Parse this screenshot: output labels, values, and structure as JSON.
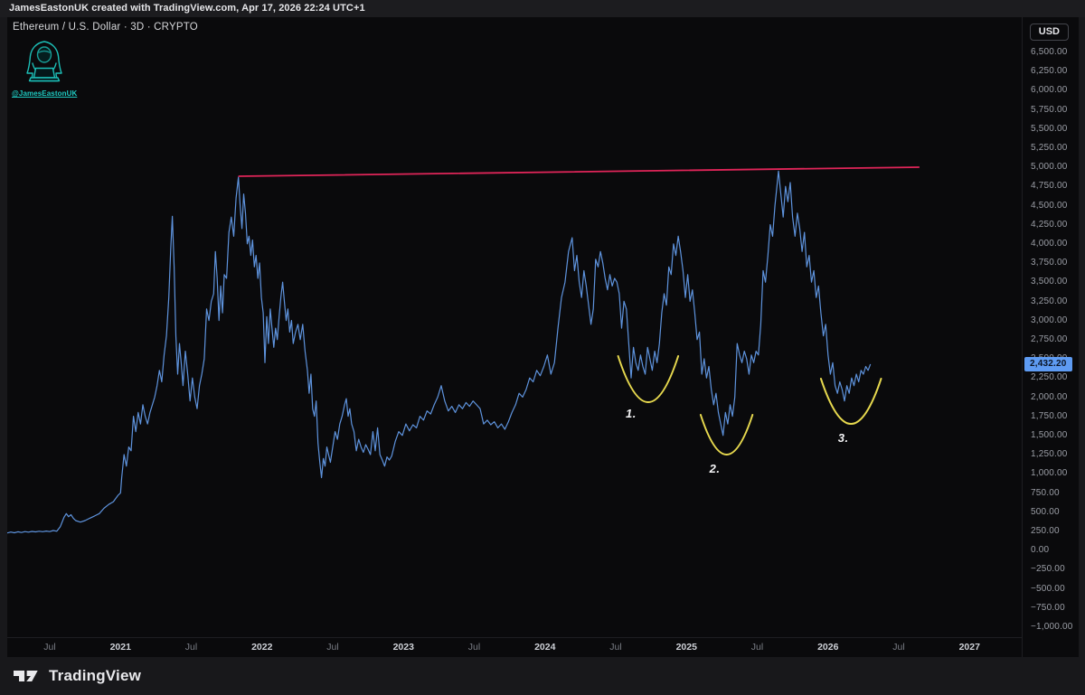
{
  "attribution": {
    "text": "JamesEastonUK created with TradingView.com, Apr 17, 2026 22:24 UTC+1"
  },
  "creator": {
    "handle": "@JamesEastonUK",
    "accent_color": "#1ec9c1"
  },
  "header": {
    "symbol_title": "Ethereum / U.S. Dollar · 3D · CRYPTO",
    "currency_button": "USD"
  },
  "footer": {
    "brand": "TradingView"
  },
  "colors": {
    "price_line": "#5e93dd",
    "trendline_pink": "#e02559",
    "arc_yellow": "#e6d84e",
    "badge_bg": "#5e9bf2",
    "badge_text": "#0a1526",
    "plot_background": "#0a0a0c",
    "frame_background": "#18181b",
    "teal_accent": "#1ec9c1"
  },
  "chart_data": {
    "type": "line",
    "title": "Ethereum / U.S. Dollar",
    "interval": "3D",
    "exchange": "CRYPTO",
    "last_price": 2432.2,
    "last_price_label": "2,432.20",
    "grid": false,
    "legend_position": "none",
    "y_axis": {
      "tick_step": 250,
      "visible_price_range": [
        -1142,
        6960
      ],
      "tick_labels": [
        "6,500.00",
        "6,250.00",
        "6,000.00",
        "5,750.00",
        "5,500.00",
        "5,250.00",
        "5,000.00",
        "4,750.00",
        "4,500.00",
        "4,250.00",
        "4,000.00",
        "3,750.00",
        "3,500.00",
        "3,250.00",
        "3,000.00",
        "2,750.00",
        "2,500.00",
        "2,250.00",
        "2,000.00",
        "1,750.00",
        "1,500.00",
        "1,250.00",
        "1,000.00",
        "750.00",
        "500.00",
        "250.00",
        "0.00",
        "−250.00",
        "−500.00",
        "−750.00",
        "−1,000.00"
      ]
    },
    "x_axis": {
      "note": "month index 0 = Jul 2020",
      "ticks": [
        {
          "label": "Jul",
          "month": 0,
          "major": false
        },
        {
          "label": "2021",
          "month": 6,
          "major": true
        },
        {
          "label": "Jul",
          "month": 12,
          "major": false
        },
        {
          "label": "2022",
          "month": 18,
          "major": true
        },
        {
          "label": "Jul",
          "month": 24,
          "major": false
        },
        {
          "label": "2023",
          "month": 30,
          "major": true
        },
        {
          "label": "Jul",
          "month": 36,
          "major": false
        },
        {
          "label": "2024",
          "month": 42,
          "major": true
        },
        {
          "label": "Jul",
          "month": 48,
          "major": false
        },
        {
          "label": "2025",
          "month": 54,
          "major": true
        },
        {
          "label": "Jul",
          "month": 60,
          "major": false
        },
        {
          "label": "2026",
          "month": 66,
          "major": true
        },
        {
          "label": "Jul",
          "month": 72,
          "major": false
        },
        {
          "label": "2027",
          "month": 78,
          "major": true
        }
      ]
    },
    "series": [
      [
        -3.6,
        230
      ],
      [
        -3.3,
        242
      ],
      [
        -3.0,
        232
      ],
      [
        -2.7,
        245
      ],
      [
        -2.4,
        236
      ],
      [
        -2.1,
        248
      ],
      [
        -1.8,
        240
      ],
      [
        -1.5,
        250
      ],
      [
        -1.2,
        244
      ],
      [
        -0.9,
        252
      ],
      [
        -0.6,
        246
      ],
      [
        -0.3,
        255
      ],
      [
        0,
        248
      ],
      [
        0.3,
        262
      ],
      [
        0.6,
        252
      ],
      [
        0.9,
        312
      ],
      [
        1.2,
        432
      ],
      [
        1.4,
        482
      ],
      [
        1.6,
        442
      ],
      [
        1.8,
        468
      ],
      [
        2.0,
        422
      ],
      [
        2.2,
        392
      ],
      [
        2.6,
        372
      ],
      [
        3.0,
        392
      ],
      [
        3.4,
        422
      ],
      [
        3.8,
        452
      ],
      [
        4.2,
        482
      ],
      [
        4.6,
        552
      ],
      [
        5.0,
        602
      ],
      [
        5.4,
        638
      ],
      [
        5.8,
        722
      ],
      [
        6.0,
        752
      ],
      [
        6.1,
        952
      ],
      [
        6.3,
        1252
      ],
      [
        6.5,
        1102
      ],
      [
        6.7,
        1352
      ],
      [
        6.9,
        1302
      ],
      [
        7.1,
        1752
      ],
      [
        7.3,
        1552
      ],
      [
        7.5,
        1802
      ],
      [
        7.7,
        1652
      ],
      [
        7.9,
        1902
      ],
      [
        8.1,
        1752
      ],
      [
        8.3,
        1652
      ],
      [
        8.5,
        1802
      ],
      [
        8.7,
        1902
      ],
      [
        8.9,
        2002
      ],
      [
        9.1,
        2152
      ],
      [
        9.3,
        2352
      ],
      [
        9.5,
        2202
      ],
      [
        9.7,
        2552
      ],
      [
        9.9,
        2802
      ],
      [
        10.1,
        3302
      ],
      [
        10.25,
        3902
      ],
      [
        10.4,
        4362
      ],
      [
        10.55,
        3702
      ],
      [
        10.7,
        2802
      ],
      [
        10.85,
        2302
      ],
      [
        11.0,
        2702
      ],
      [
        11.15,
        2452
      ],
      [
        11.3,
        2152
      ],
      [
        11.5,
        2602
      ],
      [
        11.7,
        2302
      ],
      [
        11.9,
        1952
      ],
      [
        12.1,
        2252
      ],
      [
        12.3,
        2002
      ],
      [
        12.5,
        1852
      ],
      [
        12.7,
        2152
      ],
      [
        12.9,
        2302
      ],
      [
        13.1,
        2502
      ],
      [
        13.3,
        3152
      ],
      [
        13.5,
        3002
      ],
      [
        13.7,
        3252
      ],
      [
        13.9,
        3352
      ],
      [
        14.05,
        3902
      ],
      [
        14.2,
        3552
      ],
      [
        14.35,
        3002
      ],
      [
        14.5,
        3452
      ],
      [
        14.65,
        3102
      ],
      [
        14.8,
        3602
      ],
      [
        15.0,
        3552
      ],
      [
        15.2,
        4152
      ],
      [
        15.4,
        4352
      ],
      [
        15.6,
        4102
      ],
      [
        15.8,
        4602
      ],
      [
        16.0,
        4872
      ],
      [
        16.15,
        4502
      ],
      [
        16.3,
        4202
      ],
      [
        16.45,
        4652
      ],
      [
        16.6,
        4402
      ],
      [
        16.75,
        4002
      ],
      [
        16.9,
        4102
      ],
      [
        17.05,
        3852
      ],
      [
        17.2,
        4052
      ],
      [
        17.35,
        3702
      ],
      [
        17.5,
        3852
      ],
      [
        17.65,
        3552
      ],
      [
        17.8,
        3752
      ],
      [
        17.95,
        3302
      ],
      [
        18.1,
        3102
      ],
      [
        18.25,
        2452
      ],
      [
        18.4,
        3052
      ],
      [
        18.55,
        2702
      ],
      [
        18.7,
        3152
      ],
      [
        18.85,
        2902
      ],
      [
        19.0,
        2652
      ],
      [
        19.15,
        2902
      ],
      [
        19.3,
        2752
      ],
      [
        19.45,
        3052
      ],
      [
        19.6,
        3302
      ],
      [
        19.75,
        3502
      ],
      [
        19.9,
        3252
      ],
      [
        20.05,
        3002
      ],
      [
        20.2,
        3152
      ],
      [
        20.35,
        2852
      ],
      [
        20.5,
        3002
      ],
      [
        20.65,
        2702
      ],
      [
        20.85,
        2852
      ],
      [
        21.05,
        2952
      ],
      [
        21.25,
        2752
      ],
      [
        21.45,
        2952
      ],
      [
        21.65,
        2602
      ],
      [
        21.85,
        2352
      ],
      [
        22.0,
        2052
      ],
      [
        22.15,
        2302
      ],
      [
        22.3,
        1852
      ],
      [
        22.45,
        1752
      ],
      [
        22.6,
        1952
      ],
      [
        22.75,
        1402
      ],
      [
        22.9,
        1152
      ],
      [
        23.05,
        952
      ],
      [
        23.2,
        1202
      ],
      [
        23.35,
        1102
      ],
      [
        23.5,
        1352
      ],
      [
        23.65,
        1252
      ],
      [
        23.8,
        1152
      ],
      [
        24.0,
        1352
      ],
      [
        24.2,
        1552
      ],
      [
        24.4,
        1452
      ],
      [
        24.6,
        1652
      ],
      [
        24.8,
        1752
      ],
      [
        25.0,
        1902
      ],
      [
        25.15,
        1982
      ],
      [
        25.3,
        1752
      ],
      [
        25.45,
        1852
      ],
      [
        25.6,
        1652
      ],
      [
        25.8,
        1552
      ],
      [
        26.0,
        1302
      ],
      [
        26.2,
        1452
      ],
      [
        26.4,
        1352
      ],
      [
        26.6,
        1282
      ],
      [
        26.8,
        1382
      ],
      [
        27.0,
        1322
      ],
      [
        27.2,
        1252
      ],
      [
        27.4,
        1552
      ],
      [
        27.6,
        1302
      ],
      [
        27.8,
        1602
      ],
      [
        28.0,
        1252
      ],
      [
        28.2,
        1182
      ],
      [
        28.4,
        1102
      ],
      [
        28.6,
        1222
      ],
      [
        28.8,
        1182
      ],
      [
        29.0,
        1232
      ],
      [
        29.3,
        1422
      ],
      [
        29.6,
        1552
      ],
      [
        29.9,
        1502
      ],
      [
        30.2,
        1652
      ],
      [
        30.5,
        1562
      ],
      [
        30.8,
        1642
      ],
      [
        31.1,
        1602
      ],
      [
        31.4,
        1752
      ],
      [
        31.7,
        1702
      ],
      [
        32.0,
        1822
      ],
      [
        32.3,
        1782
      ],
      [
        32.6,
        1902
      ],
      [
        32.9,
        2002
      ],
      [
        33.2,
        2152
      ],
      [
        33.5,
        1952
      ],
      [
        33.8,
        1822
      ],
      [
        34.1,
        1882
      ],
      [
        34.4,
        1802
      ],
      [
        34.7,
        1902
      ],
      [
        35.0,
        1852
      ],
      [
        35.3,
        1932
      ],
      [
        35.6,
        1882
      ],
      [
        35.9,
        1952
      ],
      [
        36.2,
        1902
      ],
      [
        36.5,
        1852
      ],
      [
        36.8,
        1652
      ],
      [
        37.1,
        1702
      ],
      [
        37.4,
        1642
      ],
      [
        37.7,
        1682
      ],
      [
        38.0,
        1602
      ],
      [
        38.3,
        1652
      ],
      [
        38.6,
        1582
      ],
      [
        38.9,
        1682
      ],
      [
        39.2,
        1802
      ],
      [
        39.5,
        1902
      ],
      [
        39.8,
        2052
      ],
      [
        40.1,
        2002
      ],
      [
        40.4,
        2102
      ],
      [
        40.7,
        2252
      ],
      [
        41.0,
        2202
      ],
      [
        41.3,
        2352
      ],
      [
        41.6,
        2282
      ],
      [
        41.9,
        2402
      ],
      [
        42.2,
        2552
      ],
      [
        42.5,
        2302
      ],
      [
        42.8,
        2452
      ],
      [
        43.1,
        2902
      ],
      [
        43.4,
        3302
      ],
      [
        43.7,
        3502
      ],
      [
        44.0,
        3902
      ],
      [
        44.3,
        4082
      ],
      [
        44.5,
        3652
      ],
      [
        44.7,
        3852
      ],
      [
        44.9,
        3502
      ],
      [
        45.1,
        3302
      ],
      [
        45.3,
        3652
      ],
      [
        45.5,
        3452
      ],
      [
        45.7,
        3202
      ],
      [
        45.9,
        2952
      ],
      [
        46.1,
        3152
      ],
      [
        46.3,
        3802
      ],
      [
        46.5,
        3702
      ],
      [
        46.7,
        3902
      ],
      [
        46.9,
        3752
      ],
      [
        47.1,
        3552
      ],
      [
        47.3,
        3402
      ],
      [
        47.5,
        3602
      ],
      [
        47.7,
        3452
      ],
      [
        47.9,
        3552
      ],
      [
        48.1,
        3502
      ],
      [
        48.3,
        3352
      ],
      [
        48.5,
        2902
      ],
      [
        48.7,
        3252
      ],
      [
        48.9,
        3152
      ],
      [
        49.1,
        2702
      ],
      [
        49.3,
        2252
      ],
      [
        49.5,
        2652
      ],
      [
        49.7,
        2452
      ],
      [
        49.9,
        2352
      ],
      [
        50.1,
        2552
      ],
      [
        50.3,
        2402
      ],
      [
        50.5,
        2302
      ],
      [
        50.7,
        2652
      ],
      [
        50.9,
        2502
      ],
      [
        51.1,
        2352
      ],
      [
        51.3,
        2602
      ],
      [
        51.5,
        2452
      ],
      [
        51.7,
        2702
      ],
      [
        51.9,
        3102
      ],
      [
        52.1,
        3352
      ],
      [
        52.3,
        3202
      ],
      [
        52.5,
        3702
      ],
      [
        52.7,
        3602
      ],
      [
        52.9,
        4002
      ],
      [
        53.1,
        3852
      ],
      [
        53.3,
        4102
      ],
      [
        53.5,
        3902
      ],
      [
        53.7,
        3652
      ],
      [
        53.9,
        3302
      ],
      [
        54.1,
        3602
      ],
      [
        54.3,
        3252
      ],
      [
        54.5,
        3402
      ],
      [
        54.7,
        3102
      ],
      [
        54.9,
        2752
      ],
      [
        55.1,
        2852
      ],
      [
        55.3,
        2302
      ],
      [
        55.5,
        2502
      ],
      [
        55.7,
        2252
      ],
      [
        55.9,
        2402
      ],
      [
        56.1,
        2102
      ],
      [
        56.3,
        1902
      ],
      [
        56.5,
        2052
      ],
      [
        56.7,
        1802
      ],
      [
        56.9,
        1652
      ],
      [
        57.1,
        1502
      ],
      [
        57.3,
        1802
      ],
      [
        57.5,
        1652
      ],
      [
        57.7,
        1902
      ],
      [
        57.9,
        1752
      ],
      [
        58.1,
        2002
      ],
      [
        58.3,
        2702
      ],
      [
        58.5,
        2552
      ],
      [
        58.7,
        2452
      ],
      [
        58.9,
        2602
      ],
      [
        59.1,
        2502
      ],
      [
        59.3,
        2302
      ],
      [
        59.5,
        2552
      ],
      [
        59.7,
        2452
      ],
      [
        59.9,
        2602
      ],
      [
        60.1,
        2552
      ],
      [
        60.3,
        2952
      ],
      [
        60.5,
        3652
      ],
      [
        60.7,
        3502
      ],
      [
        60.9,
        3852
      ],
      [
        61.1,
        4252
      ],
      [
        61.3,
        4102
      ],
      [
        61.5,
        4502
      ],
      [
        61.8,
        4952
      ],
      [
        62.0,
        4652
      ],
      [
        62.2,
        4352
      ],
      [
        62.4,
        4752
      ],
      [
        62.6,
        4552
      ],
      [
        62.8,
        4802
      ],
      [
        63.0,
        4352
      ],
      [
        63.2,
        4102
      ],
      [
        63.4,
        4402
      ],
      [
        63.6,
        4202
      ],
      [
        63.8,
        3902
      ],
      [
        64.0,
        4152
      ],
      [
        64.2,
        3702
      ],
      [
        64.4,
        3852
      ],
      [
        64.6,
        3502
      ],
      [
        64.8,
        3652
      ],
      [
        65.0,
        3302
      ],
      [
        65.2,
        3452
      ],
      [
        65.4,
        3102
      ],
      [
        65.6,
        2802
      ],
      [
        65.8,
        2952
      ],
      [
        66.0,
        2552
      ],
      [
        66.2,
        2302
      ],
      [
        66.4,
        2452
      ],
      [
        66.6,
        2152
      ],
      [
        66.8,
        2052
      ],
      [
        67.0,
        2202
      ],
      [
        67.2,
        2102
      ],
      [
        67.4,
        1952
      ],
      [
        67.6,
        2152
      ],
      [
        67.8,
        2052
      ],
      [
        68.0,
        2252
      ],
      [
        68.2,
        2152
      ],
      [
        68.4,
        2302
      ],
      [
        68.6,
        2202
      ],
      [
        68.8,
        2352
      ],
      [
        69.0,
        2302
      ],
      [
        69.2,
        2402
      ],
      [
        69.4,
        2352
      ],
      [
        69.6,
        2432.2
      ]
    ],
    "annotations": {
      "trendline": {
        "description": "horizontal resistance line connecting Nov 2021 and Aug 2025 tops",
        "from": {
          "month": 16.05,
          "price": 4884
        },
        "to": {
          "month": 73.7,
          "price": 5002
        }
      },
      "arcs": [
        {
          "label": "1.",
          "from_month": 48.2,
          "to_month": 53.3,
          "top_price": 2538,
          "bottom_price": 1936,
          "label_month": 49.3,
          "label_price": 1800
        },
        {
          "label": "2.",
          "from_month": 55.2,
          "to_month": 59.6,
          "top_price": 1771,
          "bottom_price": 1252,
          "label_month": 56.4,
          "label_price": 1080
        },
        {
          "label": "3.",
          "from_month": 65.4,
          "to_month": 70.5,
          "top_price": 2243,
          "bottom_price": 1653,
          "label_month": 67.3,
          "label_price": 1480
        }
      ]
    }
  }
}
